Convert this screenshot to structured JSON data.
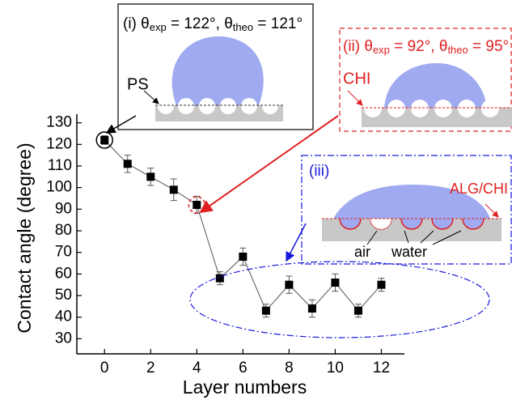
{
  "chart_data": {
    "type": "line",
    "x_label": "Layer numbers",
    "y_label": "Contact angle (degree)",
    "x": [
      0,
      1,
      2,
      3,
      4,
      5,
      6,
      7,
      8,
      9,
      10,
      11,
      12
    ],
    "values": [
      122,
      111,
      105,
      99,
      92,
      58,
      68,
      43,
      55,
      44,
      56,
      43,
      55
    ],
    "errors": [
      2,
      4,
      4,
      5,
      4,
      3,
      4,
      3,
      4,
      4,
      4,
      3,
      3
    ],
    "color": "#000000",
    "xlim": [
      -1.2,
      13
    ],
    "ylim": [
      23,
      134
    ],
    "xticks": [
      0,
      2,
      4,
      6,
      8,
      10,
      12
    ],
    "yticks": [
      30,
      40,
      50,
      60,
      70,
      80,
      90,
      100,
      110,
      120,
      130
    ],
    "annotations": {
      "inset_i": {
        "segments": [
          "(i) θ",
          "exp",
          " = 122°, θ",
          "theo",
          " = 121°"
        ],
        "labels": [
          "PS"
        ]
      },
      "inset_ii": {
        "segments": [
          "(ii) θ",
          "exp",
          " = 92°, θ",
          "theo",
          " = 95°"
        ],
        "labels": [
          "CHI"
        ]
      },
      "inset_iii": {
        "segments": [
          "(iii)"
        ],
        "labels": [
          "ALG/CHI",
          "air",
          "water"
        ]
      }
    }
  }
}
